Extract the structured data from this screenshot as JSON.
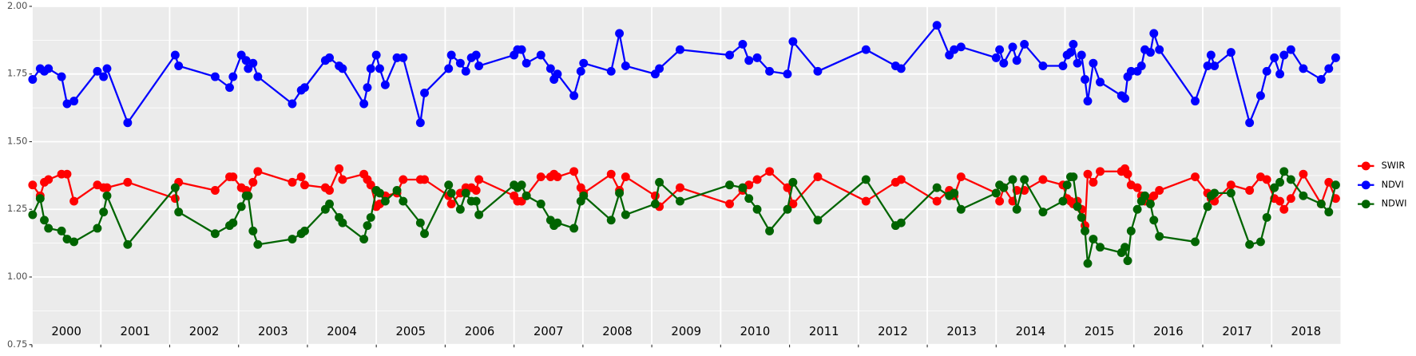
{
  "chart_data": {
    "type": "line",
    "x": [
      2000.01,
      2000.12,
      2000.18,
      2000.24,
      2000.43,
      2000.51,
      2000.61,
      2000.95,
      2001.04,
      2001.09,
      2001.39,
      2002.08,
      2002.13,
      2002.66,
      2002.87,
      2002.92,
      2003.04,
      2003.11,
      2003.14,
      2003.21,
      2003.28,
      2003.78,
      2003.91,
      2003.96,
      2004.26,
      2004.32,
      2004.46,
      2004.51,
      2004.82,
      2004.87,
      2004.92,
      2005.0,
      2005.05,
      2005.13,
      2005.3,
      2005.39,
      2005.64,
      2005.7,
      2006.05,
      2006.09,
      2006.22,
      2006.3,
      2006.38,
      2006.45,
      2006.49,
      2007.0,
      2007.05,
      2007.11,
      2007.18,
      2007.39,
      2007.53,
      2007.58,
      2007.63,
      2007.87,
      2007.97,
      2008.01,
      2008.41,
      2008.53,
      2008.62,
      2009.05,
      2009.11,
      2009.41,
      2010.13,
      2010.32,
      2010.41,
      2010.53,
      2010.71,
      2010.97,
      2011.05,
      2011.41,
      2012.11,
      2012.54,
      2012.62,
      2013.14,
      2013.32,
      2013.39,
      2013.49,
      2014.0,
      2014.05,
      2014.11,
      2014.24,
      2014.3,
      2014.41,
      2014.68,
      2014.97,
      2015.03,
      2015.08,
      2015.12,
      2015.18,
      2015.24,
      2015.29,
      2015.33,
      2015.41,
      2015.51,
      2015.82,
      2015.87,
      2015.91,
      2015.96,
      2016.05,
      2016.11,
      2016.16,
      2016.24,
      2016.29,
      2016.37,
      2016.89,
      2017.07,
      2017.12,
      2017.17,
      2017.41,
      2017.68,
      2017.84,
      2017.93,
      2018.04,
      2018.12,
      2018.18,
      2018.28,
      2018.46,
      2018.72,
      2018.83,
      2018.93
    ],
    "series": [
      {
        "name": "SWIR",
        "color": "#ff0000",
        "values": [
          1.34,
          1.3,
          1.35,
          1.36,
          1.38,
          1.38,
          1.28,
          1.34,
          1.33,
          1.33,
          1.35,
          1.29,
          1.35,
          1.32,
          1.37,
          1.37,
          1.33,
          1.32,
          1.3,
          1.35,
          1.39,
          1.35,
          1.37,
          1.34,
          1.33,
          1.32,
          1.4,
          1.36,
          1.38,
          1.36,
          1.34,
          1.26,
          1.27,
          1.3,
          1.31,
          1.36,
          1.36,
          1.36,
          1.3,
          1.27,
          1.31,
          1.33,
          1.33,
          1.32,
          1.36,
          1.3,
          1.28,
          1.28,
          1.3,
          1.37,
          1.37,
          1.38,
          1.37,
          1.39,
          1.33,
          1.31,
          1.38,
          1.32,
          1.37,
          1.3,
          1.26,
          1.33,
          1.27,
          1.32,
          1.34,
          1.36,
          1.39,
          1.33,
          1.27,
          1.37,
          1.28,
          1.35,
          1.36,
          1.28,
          1.32,
          1.3,
          1.37,
          1.31,
          1.28,
          1.33,
          1.28,
          1.32,
          1.32,
          1.36,
          1.34,
          1.29,
          1.28,
          1.27,
          1.28,
          1.25,
          1.19,
          1.38,
          1.35,
          1.39,
          1.39,
          1.4,
          1.38,
          1.34,
          1.33,
          1.3,
          1.28,
          1.29,
          1.3,
          1.32,
          1.37,
          1.31,
          1.29,
          1.28,
          1.34,
          1.32,
          1.37,
          1.36,
          1.29,
          1.28,
          1.25,
          1.29,
          1.38,
          1.27,
          1.35,
          1.29
        ]
      },
      {
        "name": "NDVI",
        "color": "#0000ff",
        "values": [
          1.73,
          1.77,
          1.76,
          1.77,
          1.74,
          1.64,
          1.65,
          1.76,
          1.74,
          1.77,
          1.57,
          1.82,
          1.78,
          1.74,
          1.7,
          1.74,
          1.82,
          1.8,
          1.77,
          1.79,
          1.74,
          1.64,
          1.69,
          1.7,
          1.8,
          1.81,
          1.78,
          1.77,
          1.64,
          1.7,
          1.77,
          1.82,
          1.77,
          1.71,
          1.81,
          1.81,
          1.57,
          1.68,
          1.77,
          1.82,
          1.79,
          1.76,
          1.81,
          1.82,
          1.78,
          1.82,
          1.84,
          1.84,
          1.79,
          1.82,
          1.77,
          1.73,
          1.75,
          1.67,
          1.76,
          1.79,
          1.76,
          1.9,
          1.78,
          1.75,
          1.77,
          1.84,
          1.82,
          1.86,
          1.8,
          1.81,
          1.76,
          1.75,
          1.87,
          1.76,
          1.84,
          1.78,
          1.77,
          1.93,
          1.82,
          1.84,
          1.85,
          1.81,
          1.84,
          1.79,
          1.85,
          1.8,
          1.86,
          1.78,
          1.78,
          1.82,
          1.83,
          1.86,
          1.79,
          1.82,
          1.73,
          1.65,
          1.79,
          1.72,
          1.67,
          1.66,
          1.74,
          1.76,
          1.76,
          1.78,
          1.84,
          1.83,
          1.9,
          1.84,
          1.65,
          1.78,
          1.82,
          1.78,
          1.83,
          1.57,
          1.67,
          1.76,
          1.81,
          1.75,
          1.82,
          1.84,
          1.77,
          1.73,
          1.77,
          1.81
        ]
      },
      {
        "name": "NDWI",
        "color": "#006400",
        "values": [
          1.23,
          1.29,
          1.21,
          1.18,
          1.17,
          1.14,
          1.13,
          1.18,
          1.24,
          1.3,
          1.12,
          1.33,
          1.24,
          1.16,
          1.19,
          1.2,
          1.26,
          1.3,
          1.3,
          1.17,
          1.12,
          1.14,
          1.16,
          1.17,
          1.25,
          1.27,
          1.22,
          1.2,
          1.14,
          1.19,
          1.22,
          1.32,
          1.31,
          1.28,
          1.32,
          1.28,
          1.2,
          1.16,
          1.34,
          1.31,
          1.25,
          1.31,
          1.28,
          1.28,
          1.23,
          1.34,
          1.33,
          1.34,
          1.3,
          1.27,
          1.21,
          1.19,
          1.2,
          1.18,
          1.28,
          1.3,
          1.21,
          1.31,
          1.23,
          1.27,
          1.35,
          1.28,
          1.34,
          1.33,
          1.29,
          1.25,
          1.17,
          1.25,
          1.35,
          1.21,
          1.36,
          1.19,
          1.2,
          1.33,
          1.3,
          1.31,
          1.25,
          1.31,
          1.34,
          1.33,
          1.36,
          1.25,
          1.36,
          1.24,
          1.28,
          1.34,
          1.37,
          1.37,
          1.26,
          1.22,
          1.17,
          1.05,
          1.14,
          1.11,
          1.09,
          1.11,
          1.06,
          1.17,
          1.25,
          1.28,
          1.3,
          1.27,
          1.21,
          1.15,
          1.13,
          1.26,
          1.3,
          1.31,
          1.31,
          1.12,
          1.13,
          1.22,
          1.33,
          1.35,
          1.39,
          1.36,
          1.3,
          1.27,
          1.24,
          1.34
        ]
      }
    ],
    "xlim": [
      2000,
      2019
    ],
    "xticks": [
      {
        "value": 2000.5,
        "label": "2000"
      },
      {
        "value": 2001.5,
        "label": "2001"
      },
      {
        "value": 2002.5,
        "label": "2002"
      },
      {
        "value": 2003.5,
        "label": "2003"
      },
      {
        "value": 2004.5,
        "label": "2004"
      },
      {
        "value": 2005.5,
        "label": "2005"
      },
      {
        "value": 2006.5,
        "label": "2006"
      },
      {
        "value": 2007.5,
        "label": "2007"
      },
      {
        "value": 2008.5,
        "label": "2008"
      },
      {
        "value": 2009.5,
        "label": "2009"
      },
      {
        "value": 2010.5,
        "label": "2010"
      },
      {
        "value": 2011.5,
        "label": "2011"
      },
      {
        "value": 2012.5,
        "label": "2012"
      },
      {
        "value": 2013.5,
        "label": "2013"
      },
      {
        "value": 2014.5,
        "label": "2014"
      },
      {
        "value": 2015.5,
        "label": "2015"
      },
      {
        "value": 2016.5,
        "label": "2016"
      },
      {
        "value": 2017.5,
        "label": "2017"
      },
      {
        "value": 2018.5,
        "label": "2018"
      }
    ],
    "ylim": [
      0.75,
      2.0
    ],
    "yticks": [
      {
        "value": 0.75,
        "label": "0.75"
      },
      {
        "value": 1.0,
        "label": "1.00"
      },
      {
        "value": 1.25,
        "label": "1.25"
      },
      {
        "value": 1.5,
        "label": "1.50"
      },
      {
        "value": 1.75,
        "label": "1.75"
      },
      {
        "value": 2.0,
        "label": "2.00"
      }
    ],
    "grid": true,
    "legend": "right"
  }
}
